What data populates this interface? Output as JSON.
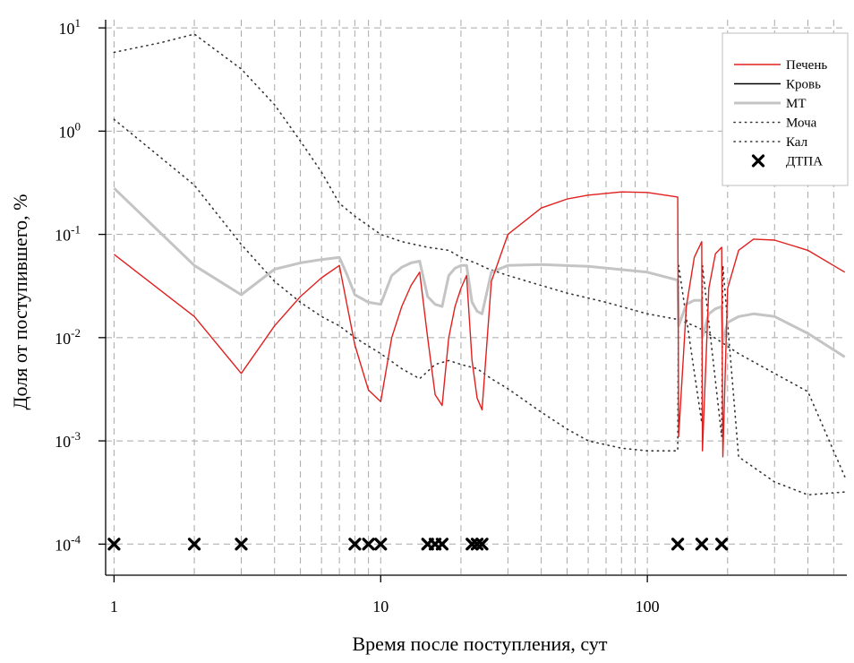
{
  "chart_data": {
    "type": "line",
    "title": "",
    "xlabel": "Время после поступления, сут",
    "ylabel": "Доля от поступившего, %",
    "xscale": "log",
    "yscale": "log",
    "xlim": [
      0.93,
      560
    ],
    "ylim": [
      5e-05,
      12
    ],
    "grid": true,
    "legend_position": "top-right",
    "x_ticks": [
      {
        "value": 1,
        "label": "1"
      },
      {
        "value": 10,
        "label": "10"
      },
      {
        "value": 100,
        "label": "100"
      }
    ],
    "y_ticks": [
      {
        "value": 10,
        "base": "10",
        "exp": "1"
      },
      {
        "value": 1,
        "base": "10",
        "exp": "0"
      },
      {
        "value": 0.1,
        "base": "10",
        "exp": "-1"
      },
      {
        "value": 0.01,
        "base": "10",
        "exp": "-2"
      },
      {
        "value": 0.001,
        "base": "10",
        "exp": "-3"
      },
      {
        "value": 0.0001,
        "base": "10",
        "exp": "-4"
      }
    ],
    "series": [
      {
        "name": "Печень",
        "style": "line",
        "color": "#e0201e",
        "x": [
          1,
          2,
          3,
          4,
          5,
          6,
          7,
          7.5,
          8,
          9,
          10,
          11,
          12,
          13,
          14,
          15,
          16,
          17,
          18,
          19,
          20,
          21,
          22,
          23,
          24,
          26,
          30,
          40,
          50,
          60,
          80,
          100,
          130,
          131,
          140,
          150,
          160,
          161,
          170,
          180,
          190,
          192,
          200,
          220,
          250,
          300,
          400,
          550
        ],
        "y": [
          0.064,
          0.016,
          0.0045,
          0.013,
          0.025,
          0.038,
          0.05,
          0.02,
          0.0085,
          0.0031,
          0.0024,
          0.01,
          0.02,
          0.032,
          0.043,
          0.01,
          0.0028,
          0.0022,
          0.01,
          0.02,
          0.03,
          0.04,
          0.006,
          0.0026,
          0.002,
          0.035,
          0.1,
          0.18,
          0.22,
          0.24,
          0.258,
          0.255,
          0.23,
          0.0011,
          0.02,
          0.06,
          0.085,
          0.0008,
          0.03,
          0.065,
          0.075,
          0.0007,
          0.03,
          0.07,
          0.09,
          0.088,
          0.07,
          0.043
        ]
      },
      {
        "name": "Кровь",
        "style": "line",
        "color": "#000000",
        "x": [],
        "y": []
      },
      {
        "name": "МТ",
        "style": "line",
        "color": "#c4c4c4",
        "x": [
          1,
          2,
          3,
          4,
          5,
          6,
          7,
          7.5,
          8,
          9,
          10,
          11,
          12,
          13,
          14,
          15,
          16,
          17,
          18,
          19,
          20,
          21,
          22,
          23,
          24,
          26,
          30,
          40,
          60,
          100,
          130,
          131,
          140,
          150,
          160,
          161,
          170,
          180,
          190,
          192,
          200,
          220,
          250,
          300,
          400,
          550
        ],
        "y": [
          0.28,
          0.05,
          0.026,
          0.046,
          0.053,
          0.057,
          0.06,
          0.04,
          0.026,
          0.022,
          0.021,
          0.04,
          0.048,
          0.053,
          0.055,
          0.025,
          0.021,
          0.02,
          0.04,
          0.047,
          0.05,
          0.05,
          0.022,
          0.018,
          0.017,
          0.043,
          0.05,
          0.051,
          0.049,
          0.043,
          0.036,
          0.013,
          0.021,
          0.023,
          0.023,
          0.01,
          0.017,
          0.019,
          0.02,
          0.009,
          0.014,
          0.016,
          0.017,
          0.016,
          0.011,
          0.0065
        ]
      },
      {
        "name": "Моча",
        "style": "dotted",
        "color": "#333333",
        "x": [
          1,
          2,
          3,
          4,
          5,
          6,
          7,
          8,
          10,
          12,
          14,
          16,
          18,
          20,
          23,
          26,
          30,
          40,
          50,
          60,
          80,
          100,
          130,
          131,
          160,
          161,
          190,
          192,
          220,
          300,
          400,
          550
        ],
        "y": [
          1.3,
          0.3,
          0.08,
          0.035,
          0.022,
          0.016,
          0.013,
          0.01,
          0.007,
          0.005,
          0.004,
          0.0055,
          0.006,
          0.0055,
          0.005,
          0.004,
          0.0032,
          0.0019,
          0.0013,
          0.001,
          0.00085,
          0.0008,
          0.0008,
          0.05,
          0.0015,
          0.05,
          0.0011,
          0.05,
          0.0007,
          0.0004,
          0.0003,
          0.00032
        ]
      },
      {
        "name": "Кал",
        "style": "dotted",
        "color": "#333333",
        "x": [
          1,
          1.5,
          2,
          3,
          4,
          5,
          6,
          7,
          8,
          10,
          12,
          15,
          18,
          20,
          23,
          25,
          30,
          40,
          50,
          70,
          100,
          130,
          150,
          160,
          190,
          220,
          300,
          400,
          550
        ],
        "y": [
          5.8,
          7.2,
          8.7,
          4.0,
          1.8,
          0.8,
          0.4,
          0.2,
          0.15,
          0.1,
          0.085,
          0.075,
          0.07,
          0.06,
          0.052,
          0.047,
          0.04,
          0.032,
          0.027,
          0.022,
          0.017,
          0.015,
          0.013,
          0.012,
          0.009,
          0.007,
          0.0045,
          0.003,
          0.00045
        ]
      },
      {
        "name": "ДТПА",
        "style": "markers",
        "marker": "x",
        "color": "#000000",
        "x": [
          1,
          2,
          3,
          8,
          9,
          10,
          15,
          16,
          17,
          22,
          23,
          24,
          130,
          160,
          190
        ],
        "y": [
          0.0001,
          0.0001,
          0.0001,
          0.0001,
          0.0001,
          0.0001,
          0.0001,
          0.0001,
          0.0001,
          0.0001,
          0.0001,
          0.0001,
          0.0001,
          0.0001,
          0.0001
        ]
      }
    ]
  }
}
